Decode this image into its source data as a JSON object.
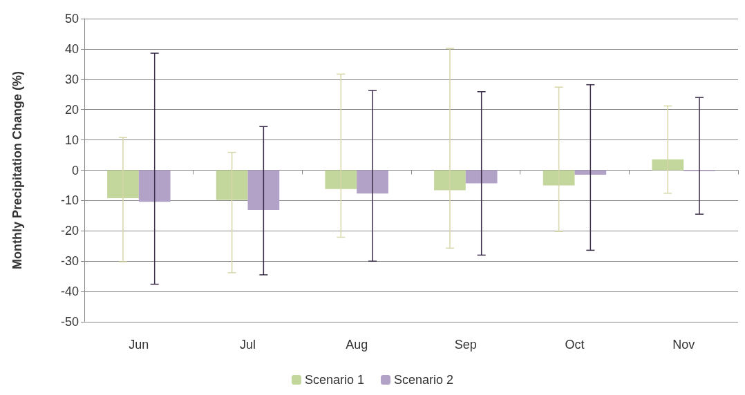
{
  "chart_data": {
    "type": "bar",
    "ylabel": "Monthly Precipitation Change (%)",
    "categories": [
      "Jun",
      "Jul",
      "Aug",
      "Sep",
      "Oct",
      "Nov"
    ],
    "series": [
      {
        "name": "Scenario 1",
        "color": "#c3d69b",
        "values": [
          -9.2,
          -9.8,
          -6.2,
          -6.6,
          -5.0,
          3.6
        ],
        "errors": [
          [
            -30.2,
            10.8
          ],
          [
            -33.8,
            5.9
          ],
          [
            -22.1,
            31.7
          ],
          [
            -25.7,
            40.2
          ],
          [
            -20.2,
            27.4
          ],
          [
            -7.6,
            21.2
          ]
        ]
      },
      {
        "name": "Scenario 2",
        "color": "#b3a2c7",
        "values": [
          -10.4,
          -13.1,
          -7.7,
          -4.3,
          -1.5,
          -0.3
        ],
        "errors": [
          [
            -37.6,
            38.6
          ],
          [
            -34.5,
            14.4
          ],
          [
            -30.0,
            26.3
          ],
          [
            -28.0,
            25.9
          ],
          [
            -26.4,
            28.2
          ],
          [
            -14.5,
            24.0
          ]
        ]
      }
    ],
    "ylim": [
      -50,
      50
    ],
    "yticks": [
      -50,
      -40,
      -30,
      -20,
      -10,
      0,
      10,
      20,
      30,
      40,
      50
    ],
    "grid": "y",
    "legend": "bottom"
  }
}
